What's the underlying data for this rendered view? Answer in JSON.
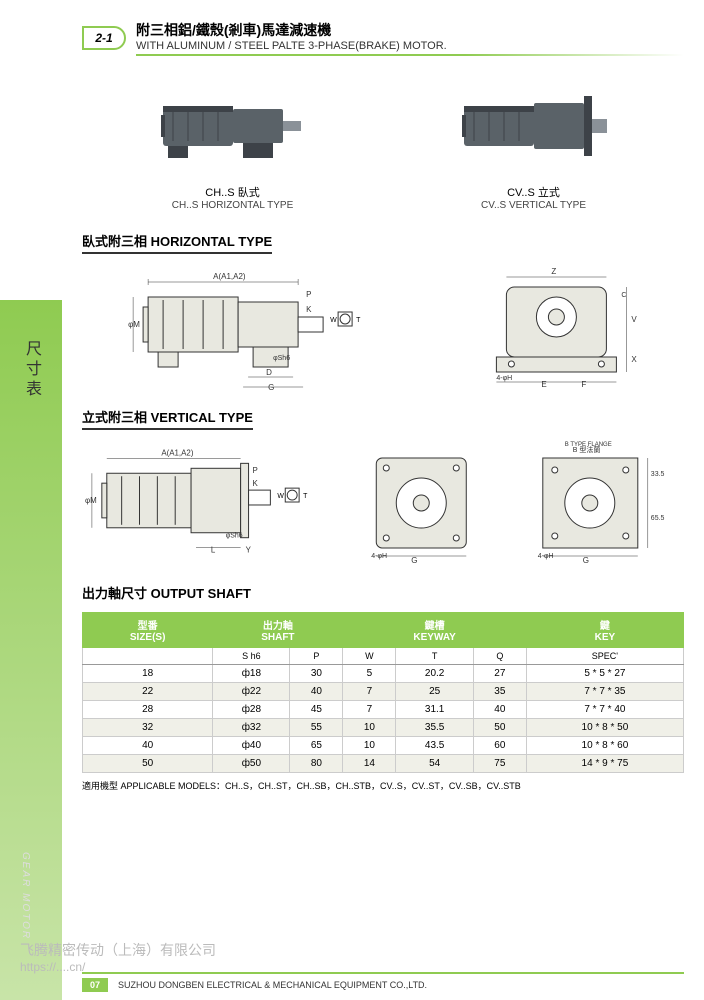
{
  "section_badge": "2-1",
  "title_cn": "附三相鋁/鐵殼(剎車)馬達減速機",
  "title_en": "WITH ALUMINUM / STEEL PALTE 3-PHASE(BRAKE) MOTOR.",
  "sidebar_cn": "尺寸表",
  "sidebar_en": "GEAR MOTOR",
  "photo1_cn": "CH..S 臥式",
  "photo1_en": "CH..S HORIZONTAL TYPE",
  "photo2_cn": "CV..S 立式",
  "photo2_en": "CV..S VERTICAL TYPE",
  "section1_title": "臥式附三相 HORIZONTAL TYPE",
  "section2_title": "立式附三相 VERTICAL TYPE",
  "table_title": "出力軸尺寸 OUTPUT SHAFT",
  "table": {
    "headers": [
      {
        "label": "型番\nSIZE(S)",
        "span": 1
      },
      {
        "label": "出力軸\nSHAFT",
        "span": 2
      },
      {
        "label": "鍵槽\nKEYWAY",
        "span": 3
      },
      {
        "label": "鍵\nKEY",
        "span": 1
      }
    ],
    "subheaders": [
      "",
      "S h6",
      "P",
      "W",
      "T",
      "Q",
      "SPEC'"
    ],
    "rows": [
      [
        "18",
        "ф18",
        "30",
        "5",
        "20.2",
        "27",
        "5 * 5 * 27"
      ],
      [
        "22",
        "ф22",
        "40",
        "7",
        "25",
        "35",
        "7 * 7 * 35"
      ],
      [
        "28",
        "ф28",
        "45",
        "7",
        "31.1",
        "40",
        "7 * 7 * 40"
      ],
      [
        "32",
        "ф32",
        "55",
        "10",
        "35.5",
        "50",
        "10 * 8 * 50"
      ],
      [
        "40",
        "ф40",
        "65",
        "10",
        "43.5",
        "60",
        "10 * 8 * 60"
      ],
      [
        "50",
        "ф50",
        "80",
        "14",
        "54",
        "75",
        "14 * 9 * 75"
      ]
    ]
  },
  "applicable": "適用機型 APPLICABLE MODELS：CH..S，CH..ST，CH..SB，CH..STB，CV..S，CV..ST，CV..SB，CV..STB",
  "page_num": "07",
  "footer_company": "SUZHOU DONGBEN ELECTRICAL & MECHANICAL EQUIPMENT CO.,LTD.",
  "watermark1": "飞腾精密传动（上海）有限公司",
  "watermark2": "https://....cn/",
  "flange_label": "B 型法蘭\nB TYPE FLANGE",
  "colors": {
    "accent": "#8fcb51",
    "motor_body": "#5a6268",
    "motor_dark": "#3d4248",
    "drawing_fill": "#e8e8e0",
    "drawing_stroke": "#333333"
  },
  "drawing_labels": {
    "h_side": [
      "A(A1,A2)",
      "P",
      "K",
      "S",
      "φM",
      "D",
      "G",
      "φSh6"
    ],
    "h_front": [
      "Z",
      "C",
      "E",
      "F",
      "4-φH",
      "X",
      "V"
    ],
    "shaft": [
      "W",
      "T"
    ],
    "v_side": [
      "A(A1,A2)",
      "P",
      "K",
      "S",
      "φM",
      "L",
      "Y",
      "φSh6"
    ],
    "v_front": [
      "G",
      "4-φH"
    ],
    "v_flange": [
      "G",
      "33.5",
      "65.5",
      "4-φH"
    ]
  }
}
